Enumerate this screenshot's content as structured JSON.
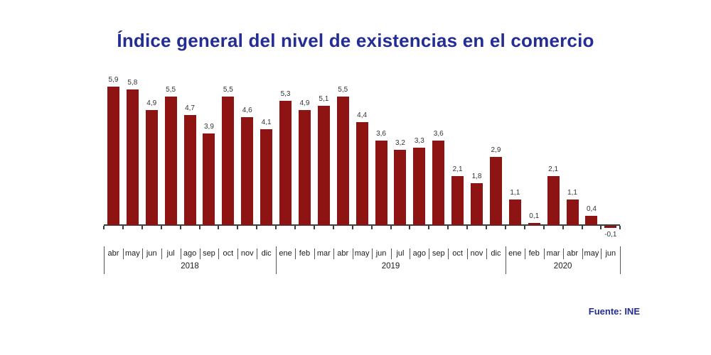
{
  "page": {
    "background": "#ffffff"
  },
  "source_label": "Fuente: INE",
  "chart_data": {
    "type": "bar",
    "title": "Índice general del nivel de existencias en el comercio",
    "categories": [
      "abr",
      "may",
      "jun",
      "jul",
      "ago",
      "sep",
      "oct",
      "nov",
      "dic",
      "ene",
      "feb",
      "mar",
      "abr",
      "may",
      "jun",
      "jul",
      "ago",
      "sep",
      "oct",
      "nov",
      "dic",
      "ene",
      "feb",
      "mar",
      "abr",
      "may",
      "jun"
    ],
    "values": [
      5.9,
      5.8,
      4.9,
      5.5,
      4.7,
      3.9,
      5.5,
      4.6,
      4.1,
      5.3,
      4.9,
      5.1,
      5.5,
      4.4,
      3.6,
      3.2,
      3.3,
      3.6,
      2.1,
      1.8,
      2.9,
      1.1,
      0.1,
      2.1,
      1.1,
      0.4,
      -0.1
    ],
    "value_label_format": "decimal-comma",
    "year_groups": [
      {
        "label": "2018",
        "start": 0,
        "count": 9
      },
      {
        "label": "2019",
        "start": 9,
        "count": 12
      },
      {
        "label": "2020",
        "start": 21,
        "count": 6
      }
    ],
    "xlabel": "",
    "ylabel": "",
    "ylim": [
      -0.5,
      6.5
    ],
    "grid": false,
    "legend": false,
    "colors": {
      "bar": "#8E1313",
      "axis": "#3d3d3d",
      "separator": "#555555",
      "value_label": "#333333",
      "category_label": "#1a1a1a",
      "title": "#232D94",
      "source": "#232D94"
    }
  }
}
